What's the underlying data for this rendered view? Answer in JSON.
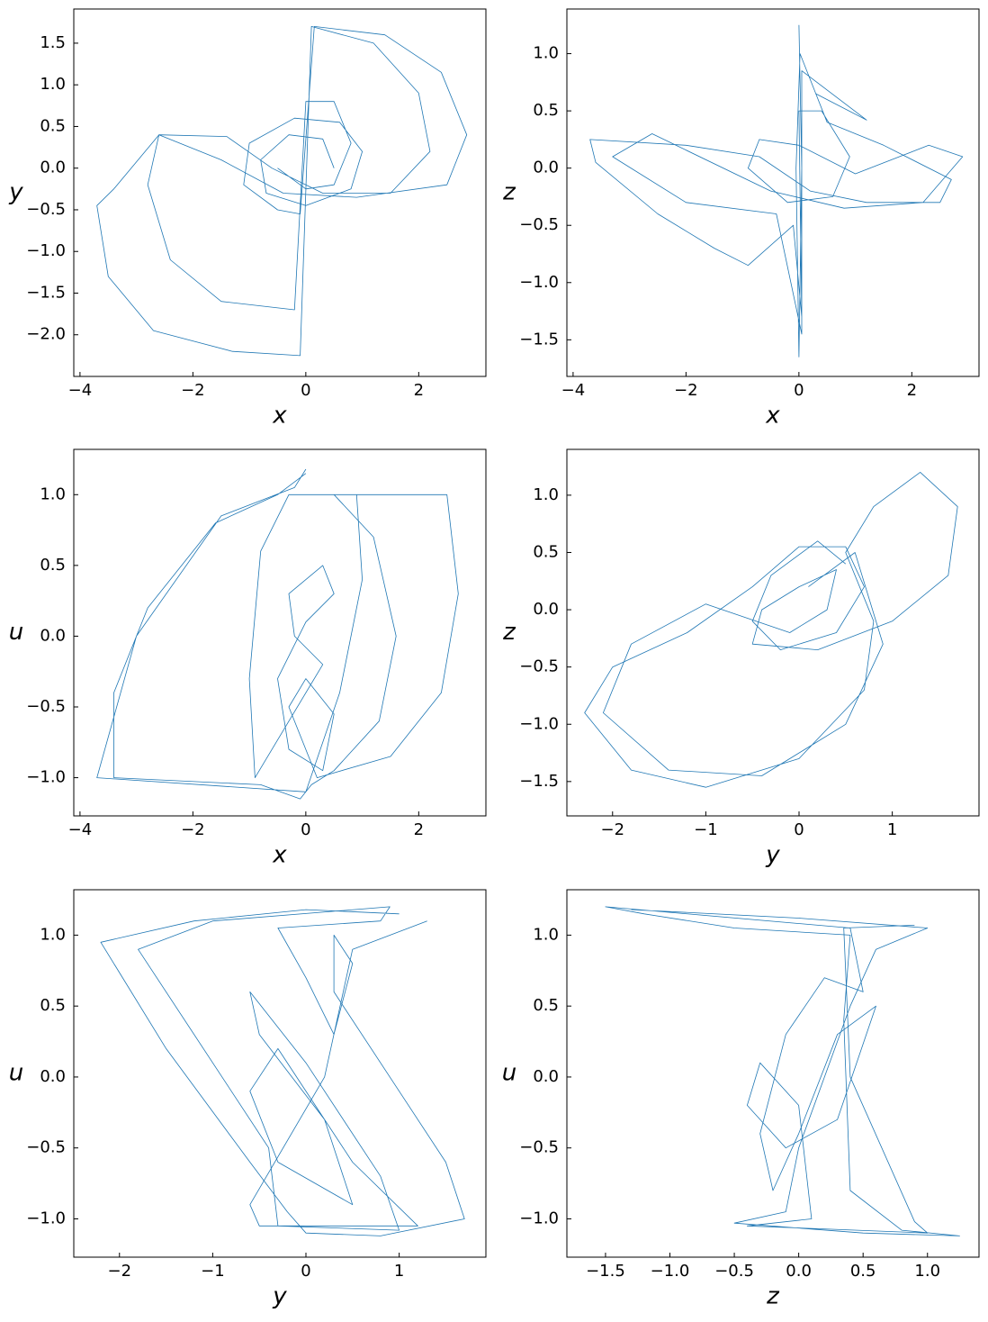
{
  "chart_data": [
    {
      "type": "line",
      "x_label": "x",
      "y_label": "y",
      "xlim": [
        -4.11,
        3.19
      ],
      "ylim": [
        -2.5,
        1.91
      ],
      "xticks": [
        {
          "value": -4,
          "label": "−4"
        },
        {
          "value": -2,
          "label": "−2"
        },
        0,
        2
      ],
      "yticks": [
        {
          "value": -2,
          "label": "−2.0"
        },
        {
          "value": -1.5,
          "label": "−1.5"
        },
        {
          "value": -1,
          "label": "−1.0"
        },
        {
          "value": -0.5,
          "label": "−0.5"
        },
        {
          "value": 0,
          "label": "0.0"
        },
        0.5,
        {
          "value": 1,
          "label": "1.0"
        },
        1.5
      ],
      "x": [
        0.5,
        0.3,
        -0.3,
        -0.8,
        -0.7,
        0,
        0.8,
        1.0,
        0.6,
        -0.2,
        -1.0,
        -1.1,
        -0.5,
        -0.1,
        0.15,
        1.4,
        2.4,
        2.85,
        2.5,
        0.9,
        -0.4,
        -1.5,
        -2.6,
        -3.4,
        -3.7,
        -3.5,
        -2.7,
        -1.3,
        -0.1,
        0.1,
        1.2,
        2.0,
        2.2,
        1.5,
        0.3,
        -0.6,
        -1.4,
        -2.6,
        -2.8,
        -2.4,
        -1.5,
        -0.2,
        0,
        0.5,
        0.8,
        0.5,
        0,
        -0.5
      ],
      "series": [
        {
          "color": "#1f77b4",
          "values": [
            0,
            0.35,
            0.4,
            0.1,
            -0.3,
            -0.45,
            -0.25,
            0.2,
            0.55,
            0.6,
            0.3,
            -0.2,
            -0.5,
            -0.55,
            1.7,
            1.6,
            1.15,
            0.4,
            -0.2,
            -0.35,
            -0.3,
            0.1,
            0.4,
            -0.25,
            -0.45,
            -1.3,
            -1.95,
            -2.2,
            -2.25,
            1.7,
            1.5,
            0.9,
            0.2,
            -0.3,
            -0.3,
            0,
            0.38,
            0.4,
            -0.2,
            -1.1,
            -1.6,
            -1.7,
            0.8,
            0.8,
            0.3,
            -0.2,
            -0.25,
            0
          ]
        }
      ]
    },
    {
      "type": "line",
      "x_label": "x",
      "y_label": "z",
      "xlim": [
        -4.11,
        3.19
      ],
      "ylim": [
        -1.82,
        1.39
      ],
      "xticks": [
        {
          "value": -4,
          "label": "−4"
        },
        {
          "value": -2,
          "label": "−2"
        },
        0,
        2
      ],
      "yticks": [
        {
          "value": -1.5,
          "label": "−1.5"
        },
        {
          "value": -1,
          "label": "−1.0"
        },
        {
          "value": -0.5,
          "label": "−0.5"
        },
        {
          "value": 0,
          "label": "0.0"
        },
        0.5,
        {
          "value": 1,
          "label": "1.0"
        }
      ],
      "x": [
        0,
        0.05,
        0,
        -0.05,
        0.02,
        0.5,
        1.5,
        2.7,
        2.5,
        1.2,
        0.2,
        -0.7,
        -2.0,
        -3.7,
        -3.6,
        -2.5,
        -1.5,
        -0.9,
        -0.1,
        0.05,
        0,
        0.4,
        0.9,
        0.6,
        -0.2,
        -0.9,
        -0.7,
        0,
        1.0,
        2.3,
        2.9,
        2.2,
        0.8,
        -0.5,
        -2.6,
        -3.3,
        -2.0,
        -0.4,
        0.05,
        0.05,
        1.2,
        0.3
      ],
      "series": [
        {
          "color": "#1f77b4",
          "values": [
            1.25,
            0,
            -1.65,
            0,
            1.0,
            0.4,
            0.2,
            -0.1,
            -0.3,
            -0.3,
            -0.2,
            0.1,
            0.2,
            0.25,
            0.05,
            -0.4,
            -0.7,
            -0.85,
            -0.5,
            -1.3,
            0.5,
            0.5,
            0.1,
            -0.25,
            -0.3,
            0,
            0.25,
            0.2,
            -0.05,
            0.2,
            0.1,
            -0.3,
            -0.35,
            -0.2,
            0.3,
            0.1,
            -0.3,
            -0.4,
            -1.45,
            0.85,
            0.42,
            0.65
          ]
        }
      ]
    },
    {
      "type": "line",
      "x_label": "x",
      "y_label": "u",
      "xlim": [
        -4.11,
        3.19
      ],
      "ylim": [
        -1.27,
        1.32
      ],
      "xticks": [
        {
          "value": -4,
          "label": "−4"
        },
        {
          "value": -2,
          "label": "−2"
        },
        0,
        2
      ],
      "yticks": [
        {
          "value": -1,
          "label": "−1.0"
        },
        {
          "value": -0.5,
          "label": "−0.5"
        },
        {
          "value": 0,
          "label": "0.0"
        },
        0.5,
        {
          "value": 1,
          "label": "1.0"
        }
      ],
      "x": [
        0,
        -0.5,
        -1.6,
        -2.8,
        -3.4,
        -3.4,
        -0.8,
        -0.1,
        0.1,
        0.5,
        1.3,
        1.6,
        1.2,
        0.5,
        2.5,
        2.7,
        2.4,
        1.5,
        0.2,
        -0.3,
        0,
        0.5,
        0.3,
        -0.3,
        -0.5,
        0,
        0.5,
        0.3,
        -0.3,
        -0.2,
        0.3,
        -0.9,
        -1.0,
        -0.8,
        -0.3,
        0.9,
        1.0,
        0.6,
        0,
        -3.7,
        -3.0,
        -1.5,
        -0.2,
        0
      ],
      "series": [
        {
          "color": "#1f77b4",
          "values": [
            1.15,
            1.0,
            0.8,
            0.2,
            -0.4,
            -1.0,
            -1.05,
            -1.15,
            -1.05,
            -0.95,
            -0.6,
            0,
            0.7,
            1.0,
            1.0,
            0.3,
            -0.4,
            -0.85,
            -1.0,
            -0.5,
            -0.3,
            -0.55,
            -0.95,
            -0.8,
            -0.3,
            0.1,
            0.3,
            0.5,
            0.3,
            0,
            -0.2,
            -1.0,
            -0.3,
            0.6,
            1.0,
            1.0,
            0.4,
            -0.4,
            -1.1,
            -1.0,
            0,
            0.85,
            1.05,
            1.18
          ]
        }
      ]
    },
    {
      "type": "line",
      "x_label": "y",
      "y_label": "z",
      "xlim": [
        -2.49,
        1.93
      ],
      "ylim": [
        -1.8,
        1.4
      ],
      "xticks": [
        {
          "value": -2,
          "label": "−2"
        },
        {
          "value": -1,
          "label": "−1"
        },
        0,
        1
      ],
      "yticks": [
        {
          "value": -1.5,
          "label": "−1.5"
        },
        {
          "value": -1,
          "label": "−1.0"
        },
        {
          "value": -0.5,
          "label": "−0.5"
        },
        {
          "value": 0,
          "label": "0.0"
        },
        0.5,
        {
          "value": 1,
          "label": "1.0"
        }
      ],
      "x": [
        0.5,
        0.2,
        -0.3,
        -0.5,
        -0.2,
        0.4,
        0.7,
        0.5,
        0,
        -0.5,
        -1.2,
        -2.0,
        -2.3,
        -1.8,
        -1.0,
        0,
        0.7,
        0.8,
        0.5,
        0.8,
        1.3,
        1.7,
        1.6,
        1.0,
        0.2,
        -0.5,
        -0.4,
        0,
        0.4,
        0.3,
        -0.1,
        -1.0,
        -1.8,
        -2.1,
        -1.4,
        -0.4,
        0.5,
        0.9,
        0.6,
        0.1
      ],
      "series": [
        {
          "color": "#1f77b4",
          "values": [
            0.4,
            0.6,
            0.3,
            -0.1,
            -0.35,
            -0.2,
            0.2,
            0.55,
            0.55,
            0.2,
            -0.2,
            -0.5,
            -0.9,
            -1.4,
            -1.55,
            -1.3,
            -0.7,
            -0.1,
            0.5,
            0.9,
            1.2,
            0.9,
            0.3,
            -0.1,
            -0.35,
            -0.3,
            0,
            0.2,
            0.35,
            0,
            -0.2,
            0.05,
            -0.3,
            -0.9,
            -1.4,
            -1.45,
            -1.0,
            -0.3,
            0.5,
            0.2
          ]
        }
      ]
    },
    {
      "type": "line",
      "x_label": "y",
      "y_label": "u",
      "xlim": [
        -2.49,
        1.93
      ],
      "ylim": [
        -1.27,
        1.32
      ],
      "xticks": [
        {
          "value": -2,
          "label": "−2"
        },
        {
          "value": -1,
          "label": "−1"
        },
        0,
        1
      ],
      "yticks": [
        {
          "value": -1,
          "label": "−1.0"
        },
        {
          "value": -0.5,
          "label": "−0.5"
        },
        {
          "value": 0,
          "label": "0.0"
        },
        0.5,
        {
          "value": 1,
          "label": "1.0"
        }
      ],
      "x": [
        1.0,
        0,
        -1.2,
        -2.2,
        -1.5,
        -0.6,
        -0.2,
        0,
        0.8,
        1.7,
        1.5,
        1.0,
        0.3,
        0.3,
        0.5,
        0.3,
        0,
        -0.3,
        0.8,
        0.9,
        -1.0,
        -1.8,
        -0.4,
        -0.3,
        1.0,
        0.8,
        0,
        -0.6,
        -0.5,
        0.2,
        0.5,
        -0.3,
        -0.6,
        -0.3,
        0.5,
        1.2,
        -0.5,
        -0.6,
        0.2,
        0.5,
        1.3
      ],
      "series": [
        {
          "color": "#1f77b4",
          "values": [
            1.15,
            1.18,
            1.1,
            0.95,
            0.2,
            -0.6,
            -0.95,
            -1.1,
            -1.12,
            -1.0,
            -0.6,
            -0.1,
            0.6,
            1.0,
            0.8,
            0.3,
            0.7,
            1.05,
            1.1,
            1.2,
            1.1,
            0.9,
            -0.5,
            -1.05,
            -1.08,
            -0.7,
            0.1,
            0.6,
            0.3,
            -0.3,
            -0.9,
            -0.6,
            -0.1,
            0.2,
            -0.6,
            -1.05,
            -1.05,
            -0.9,
            0,
            0.9,
            1.1
          ]
        }
      ]
    },
    {
      "type": "line",
      "x_label": "z",
      "y_label": "u",
      "xlim": [
        -1.8,
        1.4
      ],
      "ylim": [
        -1.27,
        1.32
      ],
      "xticks": [
        {
          "value": -1.5,
          "label": "−1.5"
        },
        {
          "value": -1,
          "label": "−1.0"
        },
        {
          "value": -0.5,
          "label": "−0.5"
        },
        {
          "value": 0,
          "label": "0.0"
        },
        0.5,
        {
          "value": 1,
          "label": "1.0"
        }
      ],
      "yticks": [
        {
          "value": -1,
          "label": "−1.0"
        },
        {
          "value": -0.5,
          "label": "−0.5"
        },
        {
          "value": 0,
          "label": "0.0"
        },
        0.5,
        {
          "value": 1,
          "label": "1.0"
        }
      ],
      "x": [
        -1.3,
        0,
        1.0,
        0.6,
        0.4,
        0.2,
        0,
        -0.1,
        -0.5,
        0.5,
        1.25,
        0.8,
        0.4,
        0.35,
        0.4,
        -0.5,
        -1.2,
        -1.5,
        0.4,
        0.5,
        0.2,
        -0.1,
        -0.3,
        -0.2,
        0,
        0.3,
        0.6,
        0.3,
        -0.1,
        -0.4,
        -0.3,
        0,
        0.1,
        -0.4,
        1.0,
        0.9,
        0.4,
        0.35,
        0.9
      ],
      "series": [
        {
          "color": "#1f77b4",
          "values": [
            1.18,
            1.12,
            1.05,
            0.9,
            0.5,
            0,
            -0.5,
            -0.95,
            -1.03,
            -1.1,
            -1.12,
            -1.08,
            -0.8,
            0.4,
            1.0,
            1.05,
            1.15,
            1.2,
            1.05,
            0.6,
            0.7,
            0.3,
            -0.4,
            -0.8,
            -0.4,
            0.3,
            0.5,
            -0.3,
            -0.5,
            -0.2,
            0.1,
            -0.2,
            -1.0,
            -1.05,
            -1.1,
            -1.02,
            0,
            1.05,
            1.07
          ]
        }
      ]
    }
  ]
}
